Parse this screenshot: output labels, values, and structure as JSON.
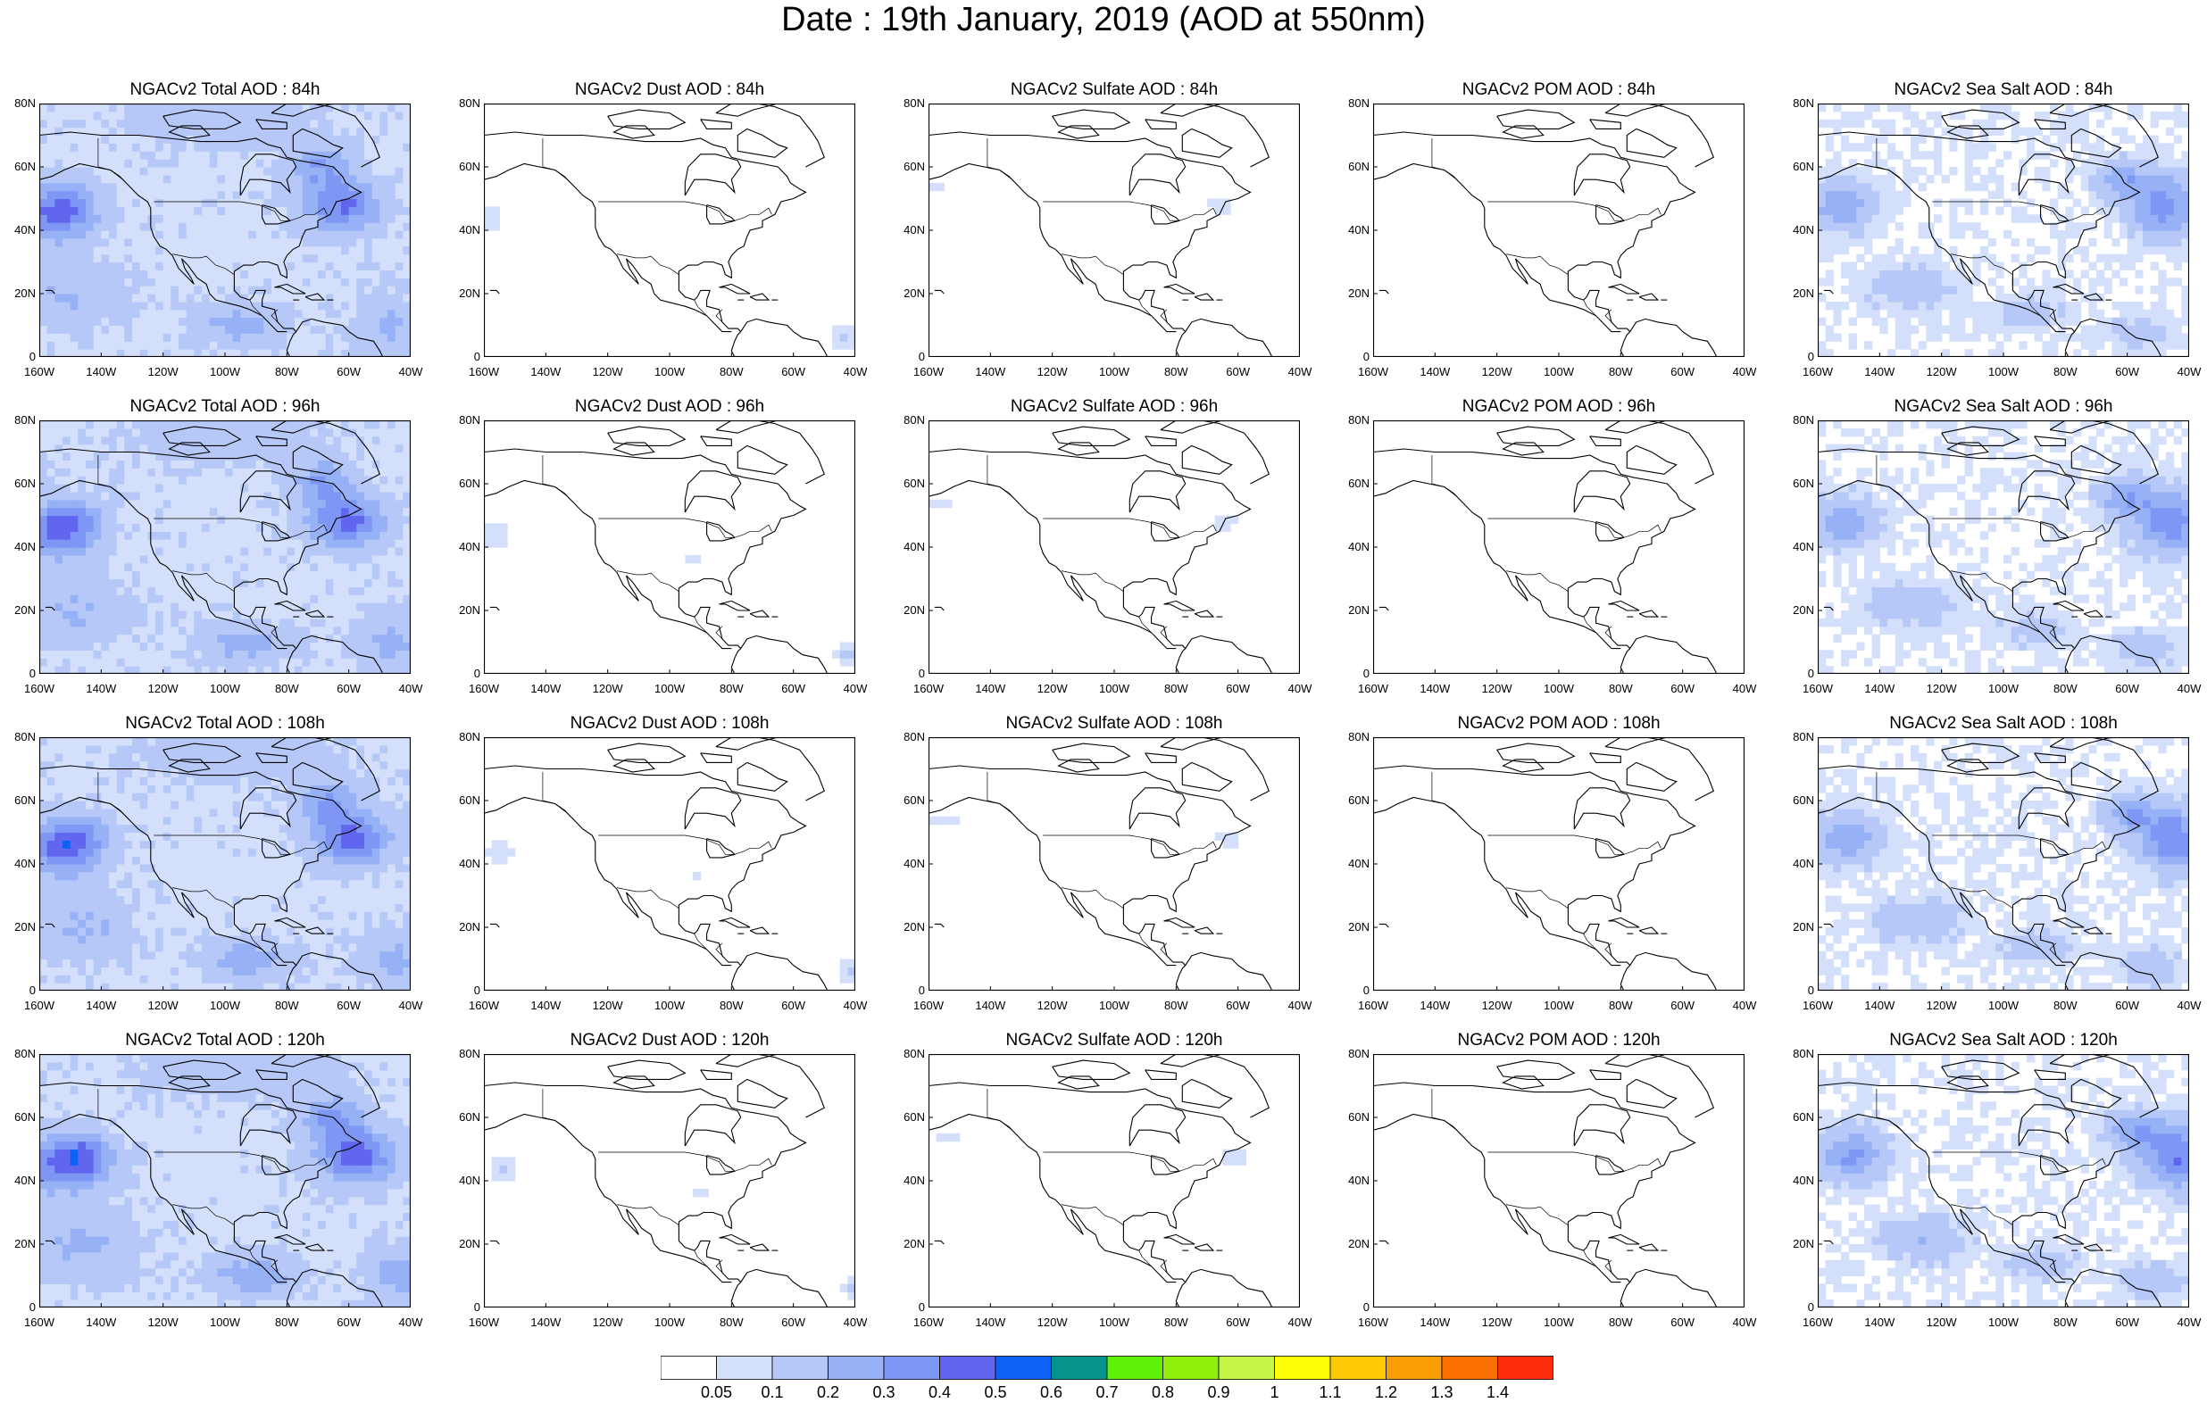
{
  "title": "Date : 19th January, 2019 (AOD at 550nm)",
  "rows": [
    "84h",
    "96h",
    "108h",
    "120h"
  ],
  "panels": [
    [
      "NGACv2 Total AOD : 84h",
      "NGACv2 Dust AOD : 84h",
      "NGACv2 Sulfate AOD : 84h",
      "NGACv2 POM AOD : 84h",
      "NGACv2 Sea Salt AOD : 84h"
    ],
    [
      "NGACv2 Total AOD : 96h",
      "NGACv2 Dust AOD : 96h",
      "NGACv2 Sulfate AOD : 96h",
      "NGACv2 POM AOD : 96h",
      "NGACv2 Sea Salt AOD : 96h"
    ],
    [
      "NGACv2 Total AOD : 108h",
      "NGACv2 Dust AOD : 108h",
      "NGACv2 Sulfate AOD : 108h",
      "NGACv2 POM AOD : 108h",
      "NGACv2 Sea Salt  AOD : 108h"
    ],
    [
      "NGACv2 Total AOD : 120h",
      "NGACv2 Dust AOD : 120h",
      "NGACv2 Sulfate AOD : 120h",
      "NGACv2 POM AOD : 120h",
      "NGACv2 Sea Salt  AOD : 120h"
    ]
  ],
  "species": [
    "total",
    "dust",
    "sulfate",
    "pom",
    "seasalt"
  ],
  "lat_ticks": [
    "0",
    "20N",
    "40N",
    "60N",
    "80N"
  ],
  "lon_ticks": [
    "160W",
    "140W",
    "120W",
    "100W",
    "80W",
    "60W",
    "40W"
  ],
  "map_extent": {
    "lon": [
      -160,
      -40
    ],
    "lat": [
      0,
      80
    ]
  },
  "colorbar": {
    "labels": [
      "0.05",
      "0.1",
      "0.2",
      "0.3",
      "0.4",
      "0.5",
      "0.6",
      "0.7",
      "0.8",
      "0.9",
      "1",
      "1.1",
      "1.2",
      "1.3",
      "1.4"
    ],
    "colors": [
      "#ffffff",
      "#d4e0fb",
      "#b5c8f7",
      "#96b1f6",
      "#7f97f4",
      "#6066ed",
      "#0b62f4",
      "#06938e",
      "#5ef20b",
      "#90f20c",
      "#c6f447",
      "#fdfe05",
      "#fdca05",
      "#fb9d04",
      "#fb7002",
      "#fc2c0d"
    ]
  }
}
